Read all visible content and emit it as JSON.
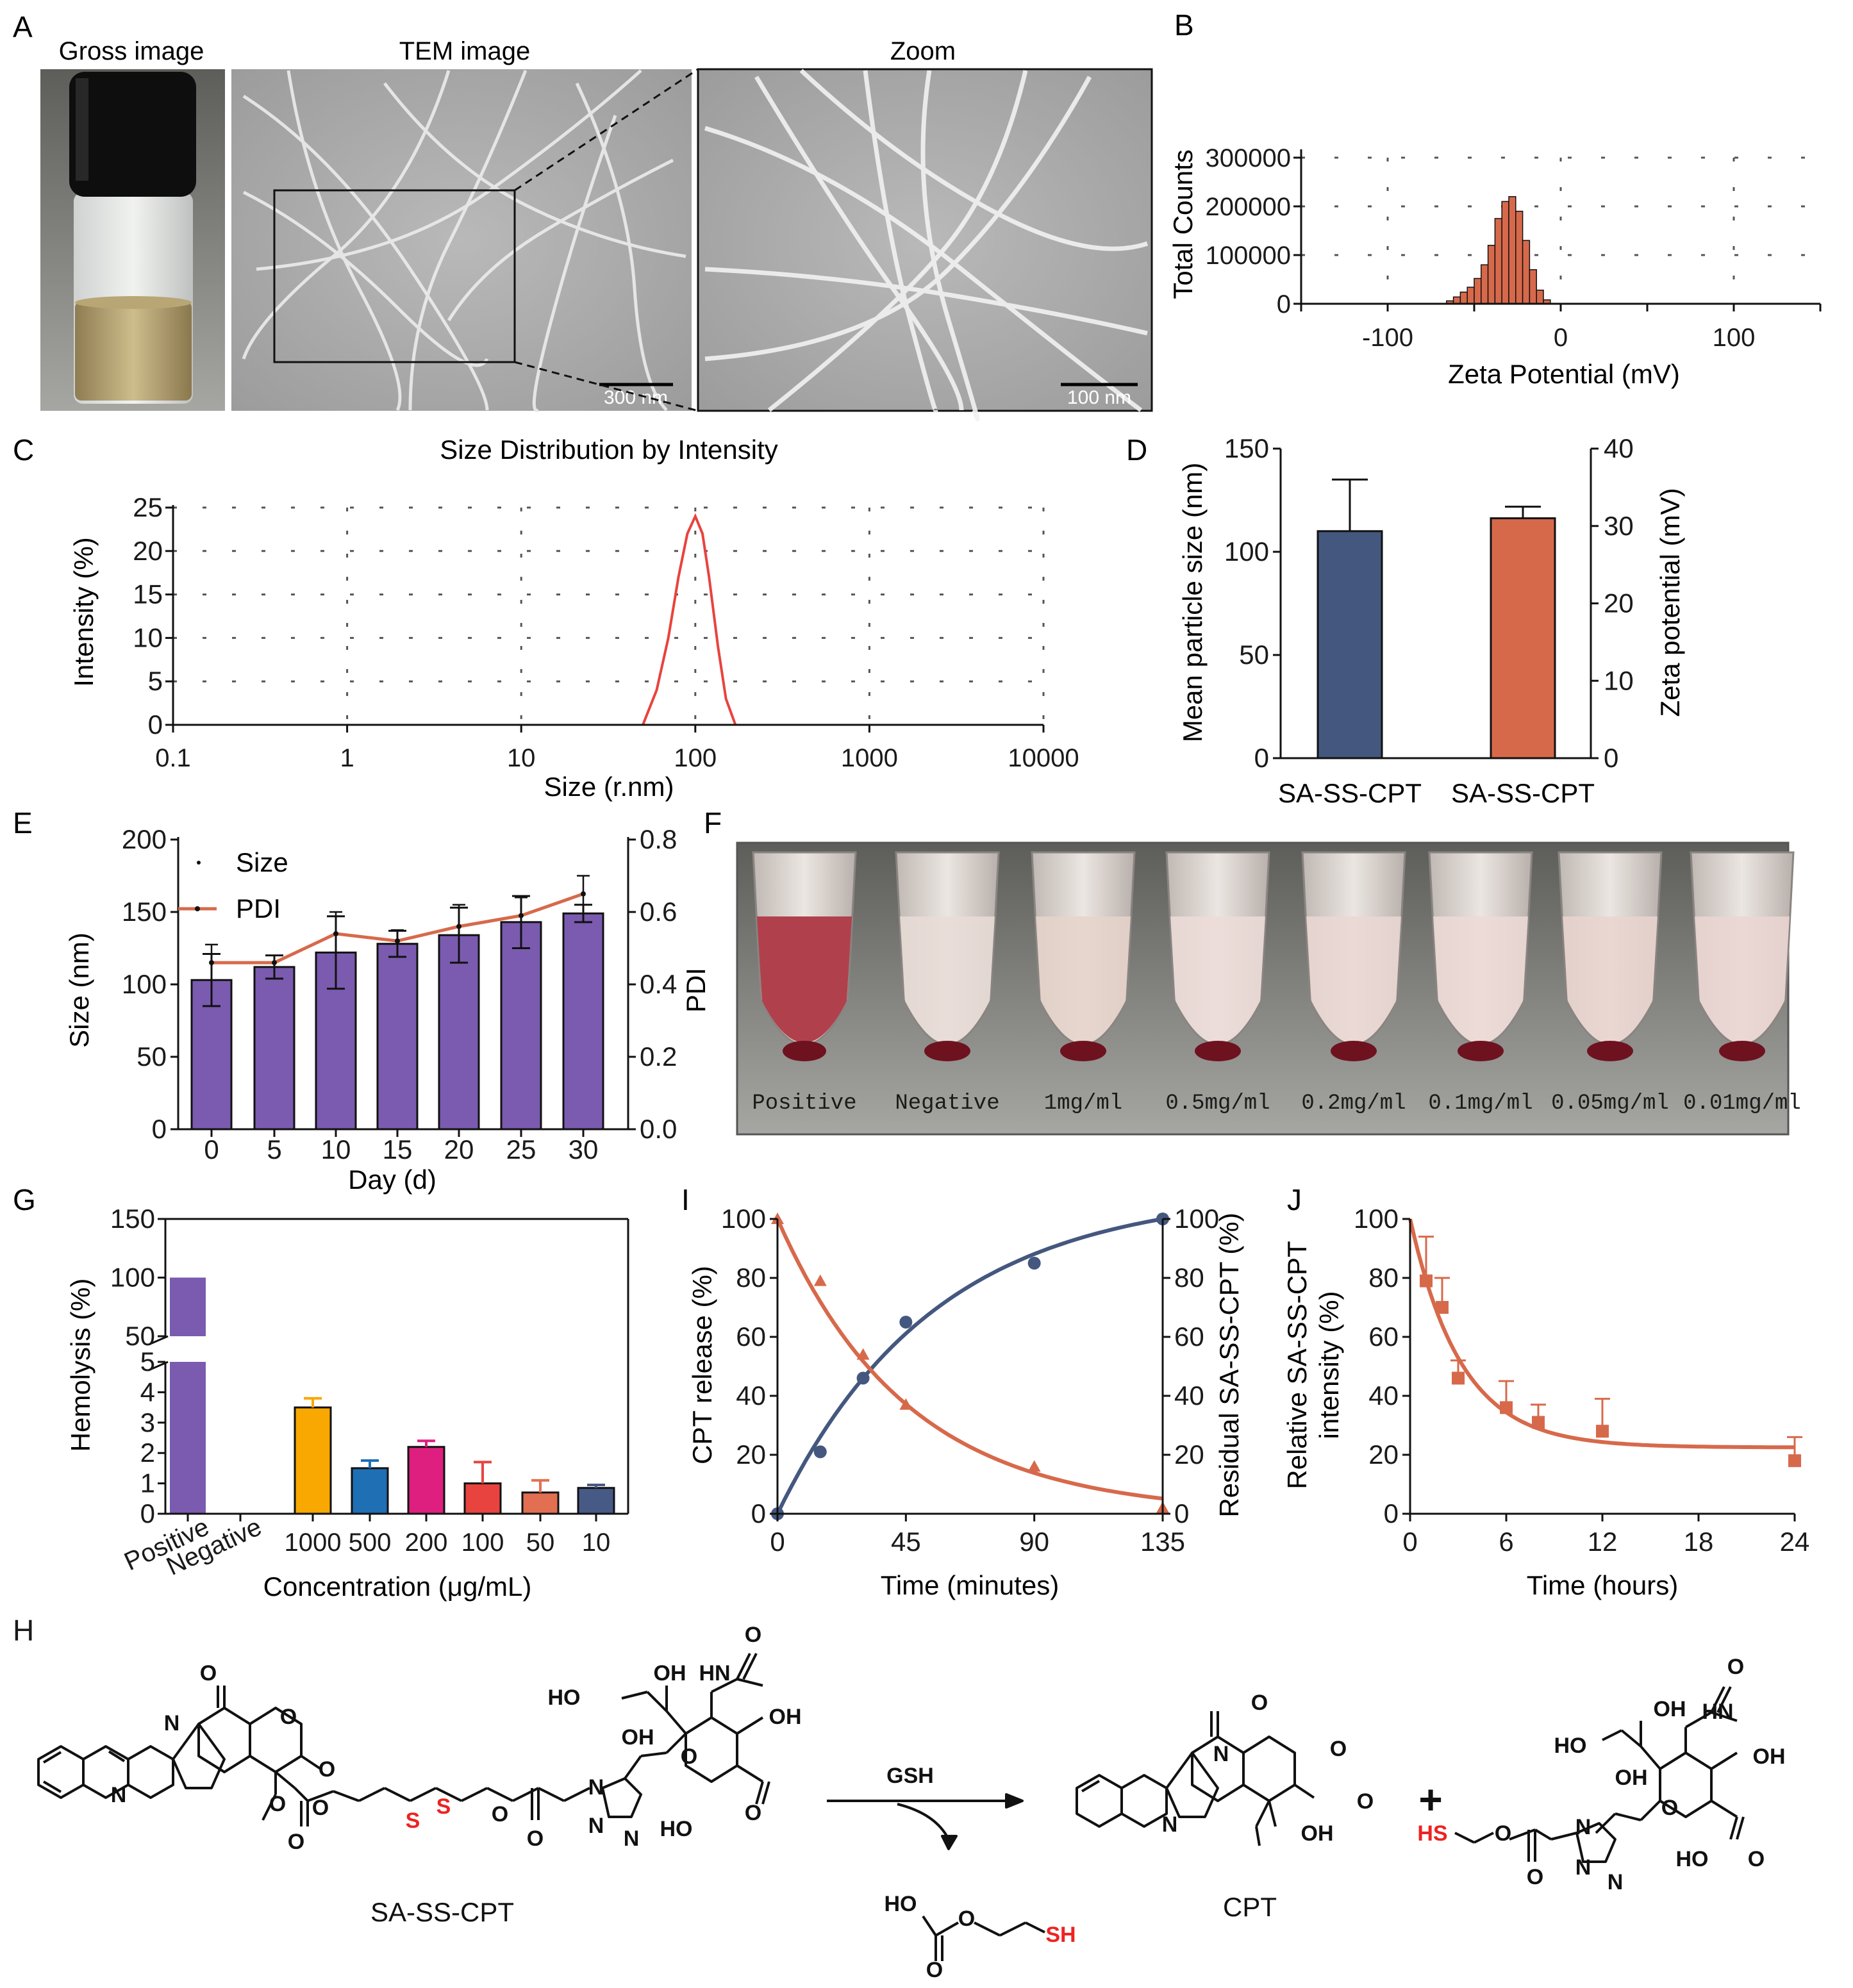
{
  "panels": {
    "A": {
      "letter": "A",
      "titles": [
        "Gross image",
        "TEM image",
        "Zoom"
      ],
      "scale_bars": [
        "300 nm",
        "100 nm"
      ]
    },
    "B": {
      "letter": "B",
      "ylabel": "Total Counts",
      "xlabel": "Zeta Potential (mV)",
      "xticks": [
        "-100",
        "0",
        "100"
      ],
      "yticks": [
        "0",
        "100000",
        "200000",
        "300000"
      ]
    },
    "C": {
      "letter": "C",
      "title": "Size Distribution by Intensity",
      "ylabel": "Intensity (%)",
      "xlabel": "Size (r.nm)",
      "xticks": [
        "0.1",
        "1",
        "10",
        "100",
        "1000",
        "10000"
      ],
      "yticks": [
        "0",
        "5",
        "10",
        "15",
        "20",
        "25"
      ]
    },
    "D": {
      "letter": "D",
      "ylabel_left": "Mean particle size (nm)",
      "ylabel_right": "Zeta potential (mV)",
      "categories": [
        "SA-SS-CPT",
        "SA-SS-CPT"
      ],
      "yticks_left": [
        "0",
        "50",
        "100",
        "150"
      ],
      "yticks_right": [
        "0",
        "10",
        "20",
        "30",
        "40"
      ]
    },
    "E": {
      "letter": "E",
      "ylabel_left": "Size (nm)",
      "ylabel_right": "PDI",
      "xlabel": "Day (d)",
      "legend": [
        "Size",
        "PDI"
      ],
      "xticks": [
        "0",
        "5",
        "10",
        "15",
        "20",
        "25",
        "30"
      ],
      "yticks_left": [
        "0",
        "50",
        "100",
        "150",
        "200"
      ],
      "yticks_right": [
        "0.0",
        "0.2",
        "0.4",
        "0.6",
        "0.8"
      ]
    },
    "F": {
      "letter": "F",
      "tube_labels": [
        "Positive",
        "Negative",
        "1mg/ml",
        "0.5mg/ml",
        "0.2mg/ml",
        "0.1mg/ml",
        "0.05mg/ml",
        "0.01mg/ml"
      ]
    },
    "G": {
      "letter": "G",
      "ylabel": "Hemolysis (%)",
      "xlabel": "Concentration (μg/mL)",
      "categories": [
        "Positive",
        "Negative",
        "1000",
        "500",
        "200",
        "100",
        "50",
        "10"
      ],
      "yticks_low": [
        "0",
        "1",
        "2",
        "3",
        "4",
        "5"
      ],
      "yticks_high": [
        "50",
        "100",
        "150"
      ]
    },
    "I": {
      "letter": "I",
      "ylabel_left": "CPT release (%)",
      "ylabel_right": "Residual SA-SS-CPT (%)",
      "xlabel": "Time (minutes)",
      "xticks": [
        "0",
        "45",
        "90",
        "135"
      ],
      "yticks": [
        "0",
        "20",
        "40",
        "60",
        "80",
        "100"
      ]
    },
    "J": {
      "letter": "J",
      "ylabel_1": "Relative SA-SS-CPT",
      "ylabel_2": "intensity (%)",
      "xlabel": "Time (hours)",
      "xticks": [
        "0",
        "6",
        "12",
        "18",
        "24"
      ],
      "yticks": [
        "0",
        "20",
        "40",
        "60",
        "80",
        "100"
      ]
    },
    "H": {
      "letter": "H",
      "reactant": "SA-SS-CPT",
      "product": "CPT",
      "reagent": "GSH",
      "plus": "+",
      "atoms": {
        "N": "N",
        "O": "O",
        "OH": "OH",
        "HO": "HO",
        "HN": "HN",
        "S": "S",
        "SH": "SH",
        "HS": "HS"
      }
    }
  },
  "colors": {
    "navy": "#44577f",
    "orange": "#d7694b",
    "purple": "#7a5bb0",
    "red": "#e8433e",
    "yellow": "#f8a800",
    "blue": "#1f6fb5",
    "magenta": "#df1f7f",
    "salmon": "#e26f51",
    "slate": "#475a86",
    "sulfur": "#ee2222"
  },
  "chart_data": [
    {
      "id": "B",
      "type": "bar",
      "title": "",
      "xlabel": "Zeta Potential (mV)",
      "ylabel": "Total Counts",
      "xlim": [
        -150,
        150
      ],
      "ylim": [
        0,
        300000
      ],
      "grid": true,
      "x": [
        -64,
        -60,
        -56,
        -52,
        -48,
        -44,
        -40,
        -36,
        -32,
        -28,
        -24,
        -20,
        -16,
        -12,
        -8
      ],
      "values": [
        6000,
        14000,
        24000,
        34000,
        52000,
        80000,
        120000,
        175000,
        210000,
        220000,
        190000,
        130000,
        70000,
        28000,
        8000
      ]
    },
    {
      "id": "C",
      "type": "line",
      "title": "Size Distribution by Intensity",
      "xlabel": "Size (r.nm)",
      "ylabel": "Intensity (%)",
      "xscale": "log",
      "xlim": [
        0.1,
        10000
      ],
      "ylim": [
        0,
        25
      ],
      "grid": true,
      "x": [
        50,
        60,
        70,
        80,
        90,
        100,
        110,
        120,
        135,
        150,
        170
      ],
      "values": [
        0,
        4,
        10,
        17,
        22,
        24,
        22,
        17,
        9,
        3,
        0
      ]
    },
    {
      "id": "D",
      "type": "bar",
      "title": "",
      "categories": [
        "SA-SS-CPT",
        "SA-SS-CPT"
      ],
      "series": [
        {
          "name": "Mean particle size (nm)",
          "axis": "left",
          "values": [
            110,
            null
          ],
          "err": [
            25,
            null
          ]
        },
        {
          "name": "Zeta potential (mV)",
          "axis": "right",
          "values": [
            null,
            31
          ],
          "err": [
            null,
            1.5
          ]
        }
      ],
      "ylim_left": [
        0,
        150
      ],
      "ylim_right": [
        0,
        40
      ]
    },
    {
      "id": "E",
      "type": "bar",
      "title": "",
      "xlabel": "Day (d)",
      "categories": [
        "0",
        "5",
        "10",
        "15",
        "20",
        "25",
        "30"
      ],
      "series": [
        {
          "name": "Size",
          "axis": "left",
          "values": [
            103,
            112,
            122,
            128,
            134,
            143,
            149
          ],
          "err": [
            18,
            8,
            25,
            9,
            19,
            18,
            6
          ]
        },
        {
          "name": "PDI",
          "axis": "right",
          "values": [
            0.46,
            0.46,
            0.54,
            0.52,
            0.56,
            0.59,
            0.65
          ],
          "err": [
            0.05,
            0.02,
            0.06,
            0.03,
            0.06,
            0.05,
            0.05
          ]
        }
      ],
      "ylim_left": [
        0,
        200
      ],
      "ylim_right": [
        0,
        0.8
      ]
    },
    {
      "id": "G",
      "type": "bar",
      "title": "",
      "xlabel": "Concentration (μg/mL)",
      "ylabel": "Hemolysis (%)",
      "categories": [
        "Positive",
        "Negative",
        "1000",
        "500",
        "200",
        "100",
        "50",
        "10"
      ],
      "values": [
        100,
        0,
        3.5,
        1.5,
        2.2,
        1.0,
        0.7,
        0.85
      ],
      "err": [
        0,
        0,
        0.3,
        0.25,
        0.2,
        0.7,
        0.4,
        0.1
      ],
      "ylim": [
        0,
        150
      ],
      "axis_break": [
        5,
        50
      ]
    },
    {
      "id": "I",
      "type": "line",
      "title": "",
      "xlabel": "Time (minutes)",
      "xlim": [
        0,
        135
      ],
      "ylim": [
        0,
        100
      ],
      "series": [
        {
          "name": "CPT release (%)",
          "axis": "left",
          "x": [
            0,
            15,
            30,
            45,
            90,
            135
          ],
          "values": [
            0,
            21,
            46,
            65,
            85,
            100
          ]
        },
        {
          "name": "Residual SA-SS-CPT (%)",
          "axis": "right",
          "x": [
            0,
            15,
            30,
            45,
            90,
            135
          ],
          "values": [
            100,
            79,
            54,
            37,
            16,
            2
          ]
        }
      ]
    },
    {
      "id": "J",
      "type": "line",
      "title": "",
      "xlabel": "Time (hours)",
      "xlim": [
        0,
        24
      ],
      "ylim": [
        0,
        100
      ],
      "ylabel": "Relative SA-SS-CPT intensity (%)",
      "x": [
        1,
        2,
        3,
        6,
        8,
        12,
        24
      ],
      "values": [
        79,
        70,
        46,
        36,
        31,
        28,
        18
      ],
      "err": [
        15,
        10,
        6,
        9,
        6,
        11,
        8
      ]
    }
  ]
}
